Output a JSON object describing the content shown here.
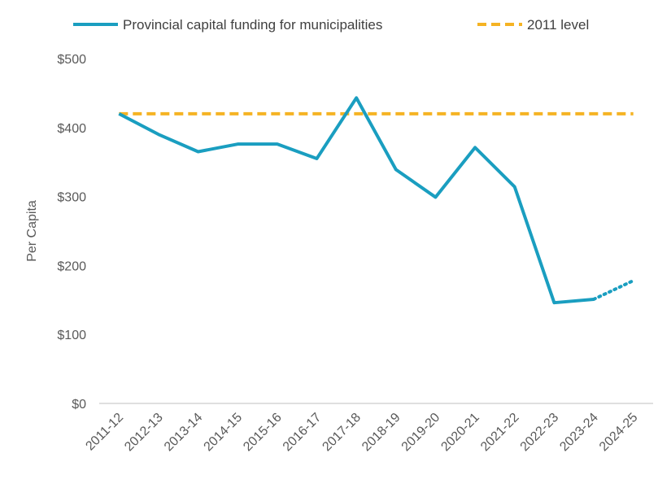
{
  "chart_data": {
    "type": "line",
    "title": "",
    "xlabel": "",
    "ylabel": "Per Capita",
    "ylim": [
      0,
      500
    ],
    "yticks": [
      "$0",
      "$100",
      "$200",
      "$300",
      "$400",
      "$500"
    ],
    "ytick_values": [
      0,
      100,
      200,
      300,
      400,
      500
    ],
    "grid": false,
    "legend_position": "top",
    "categories": [
      "2011-12",
      "2012-13",
      "2013-14",
      "2014-15",
      "2015-16",
      "2016-17",
      "2017-18",
      "2018-19",
      "2019-20",
      "2020-21",
      "2021-22",
      "2022-23",
      "2023-24",
      "2024-25"
    ],
    "series": [
      {
        "name": "Provincial capital funding for municipalities",
        "color": "#1a9ec0",
        "style": "solid",
        "values": [
          420,
          390,
          365,
          376,
          376,
          355,
          443,
          339,
          299,
          371,
          314,
          146,
          151,
          178
        ],
        "projected_from_index": 12
      },
      {
        "name": "2011 level",
        "color": "#f5b323",
        "style": "dashed",
        "values": [
          420,
          420,
          420,
          420,
          420,
          420,
          420,
          420,
          420,
          420,
          420,
          420,
          420,
          420
        ]
      }
    ]
  }
}
